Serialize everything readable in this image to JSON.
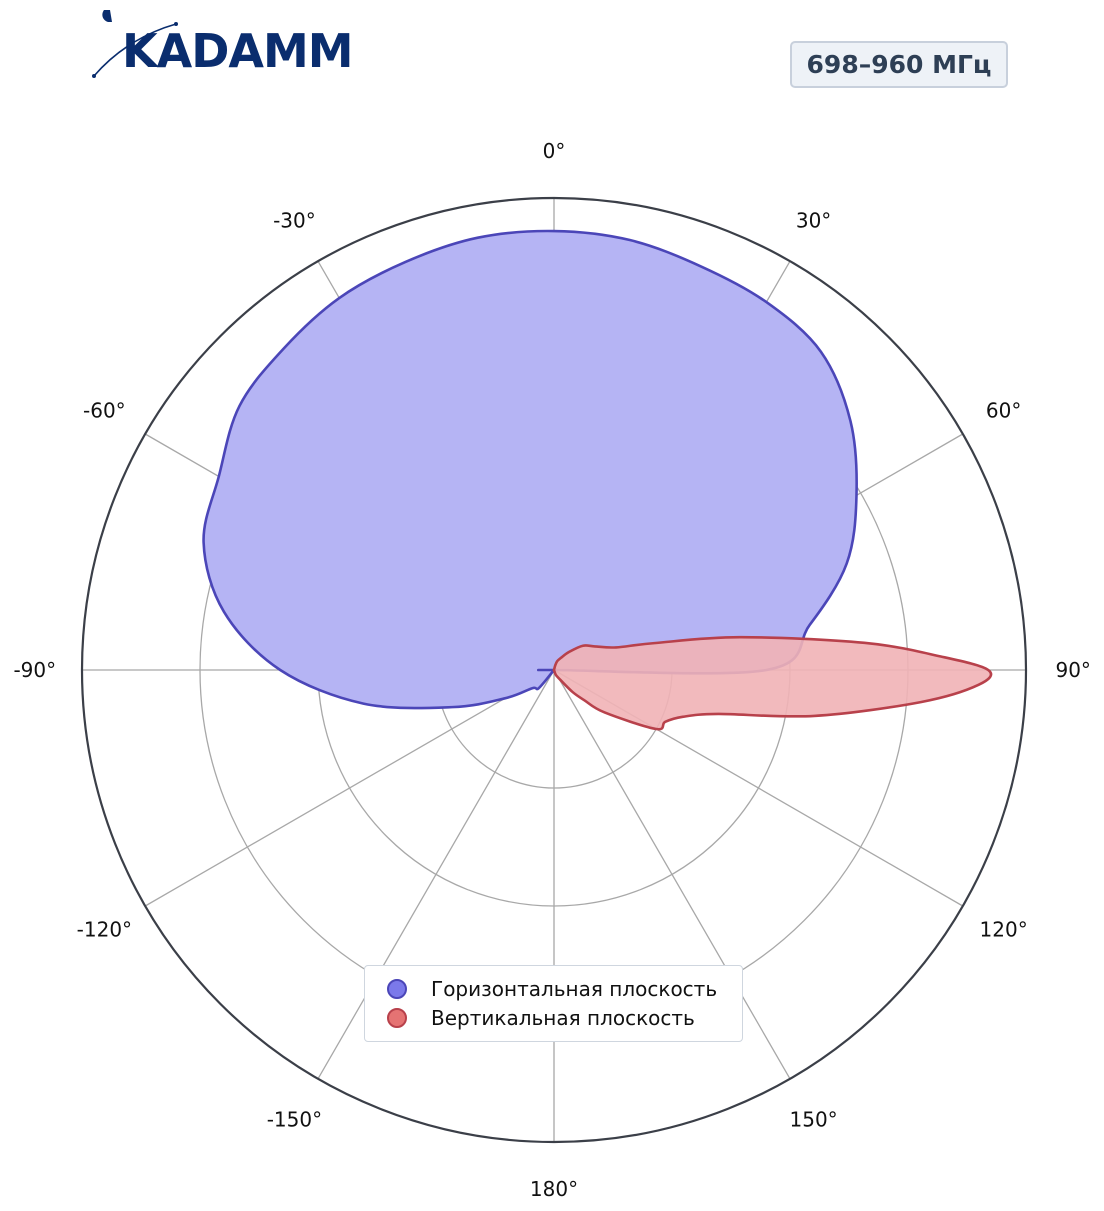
{
  "header": {
    "logo_text": "KADAMM",
    "frequency_badge": "698–960 МГц"
  },
  "colors": {
    "horizontal_fill": "#b5b4f4",
    "horizontal_stroke": "#4b46b8",
    "vertical_fill": "#f1b2b6",
    "vertical_stroke": "#b8414b",
    "grid": "#a8a8a8",
    "outer_ring": "#3b3f48",
    "logo": "#0a2d6e"
  },
  "chart_data": {
    "type": "polar",
    "title": "",
    "angle_unit": "deg",
    "angular_ticks": [
      "0°",
      "30°",
      "60°",
      "90°",
      "120°",
      "150°",
      "180°",
      "-150°",
      "-120°",
      "-90°",
      "-60°",
      "-30°"
    ],
    "angular_tick_values": [
      0,
      30,
      60,
      90,
      120,
      150,
      180,
      -150,
      -120,
      -90,
      -60,
      -30
    ],
    "radial_range": [
      0,
      1
    ],
    "radial_rings": [
      0.25,
      0.5,
      0.75
    ],
    "radial_tick_labels": false,
    "grid": true,
    "legend_position": "bottom-center",
    "series": [
      {
        "name": "Горизонтальная плоскость",
        "color": "#7b79ea",
        "angles": [
          0,
          10,
          20,
          30,
          40,
          50,
          60,
          70,
          80,
          90,
          100,
          110,
          120,
          130,
          140,
          150,
          160,
          170,
          180,
          190,
          200,
          210,
          220,
          230,
          240,
          250,
          260,
          270,
          280,
          290,
          300,
          310,
          320,
          330,
          340,
          350
        ],
        "values": [
          0.93,
          0.925,
          0.91,
          0.9,
          0.88,
          0.82,
          0.74,
          0.66,
          0.55,
          0.45,
          0.0,
          0.0,
          0.0,
          0.0,
          0.0,
          0.0,
          0.0,
          0.0,
          0.0,
          0.0,
          0.0,
          0.0,
          0.05,
          0.06,
          0.12,
          0.23,
          0.41,
          0.58,
          0.71,
          0.79,
          0.82,
          0.87,
          0.89,
          0.91,
          0.92,
          0.93
        ]
      },
      {
        "name": "Вертикальная плоскость",
        "color": "#e57373",
        "angles": [
          0,
          5,
          10,
          15,
          20,
          30,
          40,
          50,
          60,
          70,
          75,
          80,
          85,
          88,
          90,
          92,
          95,
          100,
          105,
          110,
          115,
          120,
          130,
          135,
          140,
          150,
          160,
          170,
          180
        ],
        "values": [
          0.0,
          0.0,
          0.0,
          0.01,
          0.02,
          0.03,
          0.05,
          0.08,
          0.1,
          0.14,
          0.22,
          0.4,
          0.66,
          0.82,
          0.92,
          0.9,
          0.78,
          0.56,
          0.36,
          0.29,
          0.26,
          0.25,
          0.14,
          0.09,
          0.06,
          0.02,
          0.01,
          0.0,
          0.0
        ]
      }
    ]
  }
}
